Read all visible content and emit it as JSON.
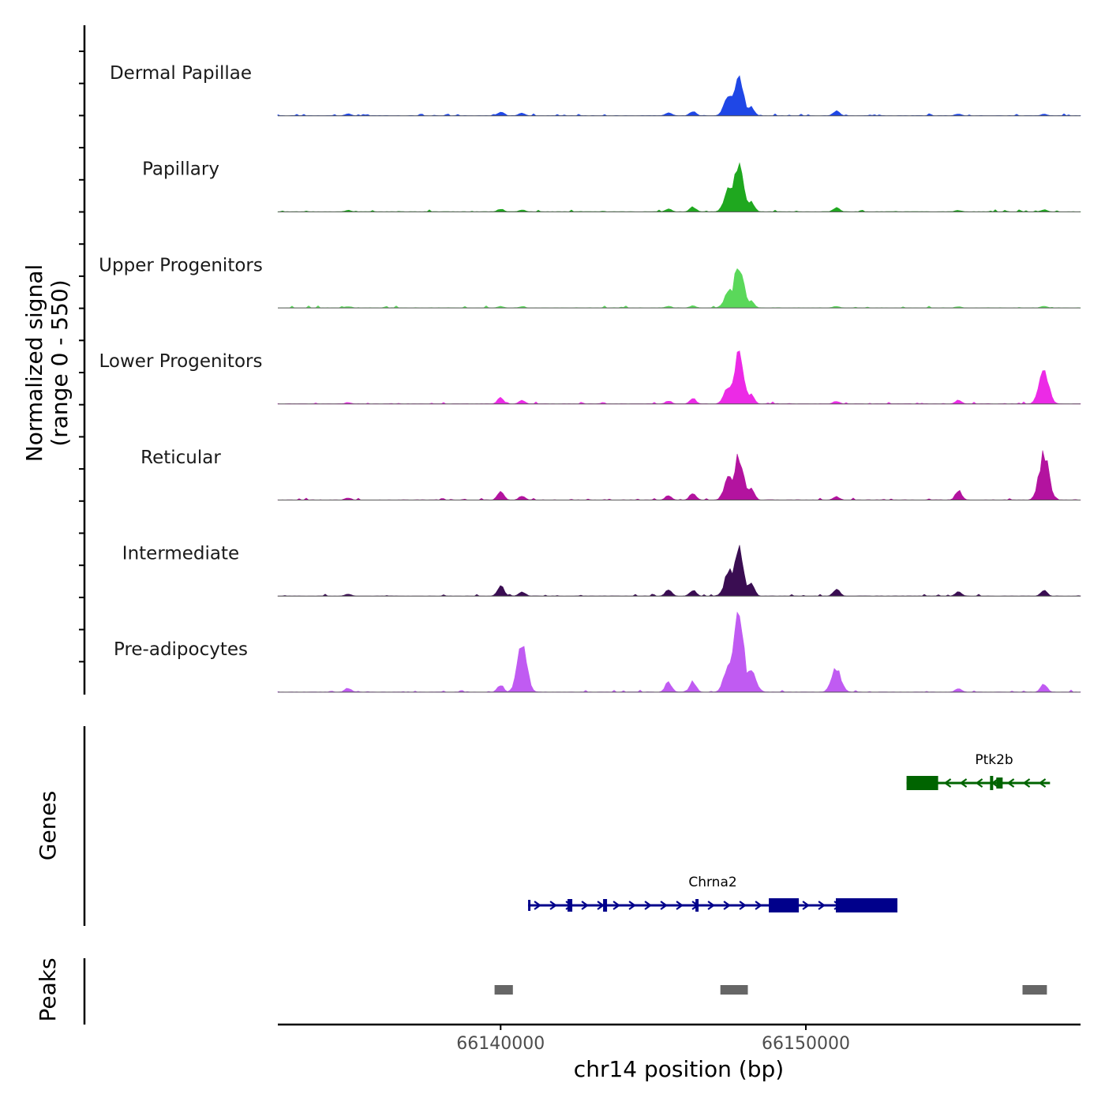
{
  "chart_data": {
    "type": "area",
    "chromosome": "chr14",
    "x_range": [
      66132700,
      66159000
    ],
    "signal": {
      "ylabel_line1": "Normalized signal",
      "ylabel_line2": "(range 0 - 550)",
      "ylim": [
        0,
        550
      ],
      "positions": [
        66135000,
        66140000,
        66140700,
        66145500,
        66146300,
        66147500,
        66147800,
        66148200,
        66151000,
        66155000,
        66157800
      ],
      "tracks": [
        {
          "name": "Dermal Papillae",
          "color": "#1f47e6",
          "values": [
            12,
            25,
            18,
            20,
            28,
            140,
            230,
            60,
            30,
            12,
            10
          ]
        },
        {
          "name": "Papillary",
          "color": "#1fa81f",
          "values": [
            10,
            18,
            12,
            18,
            30,
            150,
            320,
            70,
            28,
            10,
            14
          ]
        },
        {
          "name": "Upper Progenitors",
          "color": "#5ad85a",
          "values": [
            10,
            10,
            8,
            10,
            14,
            110,
            280,
            50,
            10,
            8,
            12
          ]
        },
        {
          "name": "Lower Progenitors",
          "color": "#ec2ae6",
          "values": [
            10,
            40,
            22,
            20,
            35,
            120,
            340,
            70,
            18,
            25,
            210
          ]
        },
        {
          "name": "Reticular",
          "color": "#b3139f",
          "values": [
            14,
            55,
            28,
            30,
            45,
            150,
            280,
            85,
            22,
            60,
            290
          ]
        },
        {
          "name": "Intermediate",
          "color": "#3a0d52",
          "values": [
            14,
            70,
            30,
            40,
            40,
            160,
            320,
            95,
            45,
            28,
            38
          ]
        },
        {
          "name": "Pre-adipocytes",
          "color": "#c05bf2",
          "values": [
            25,
            45,
            300,
            65,
            70,
            210,
            550,
            160,
            150,
            25,
            55
          ]
        }
      ]
    },
    "genes": {
      "ylabel": "Genes",
      "items": [
        {
          "name": "Ptk2b",
          "start": 66153300,
          "end": 66158000,
          "strand": "-",
          "color": "#006400"
        },
        {
          "name": "Chrna2",
          "start": 66140900,
          "end": 66153000,
          "strand": "+",
          "color": "#00008b"
        }
      ]
    },
    "peaks": {
      "ylabel": "Peaks",
      "color": "#666666",
      "items": [
        {
          "start": 66139800,
          "end": 66140400
        },
        {
          "start": 66147200,
          "end": 66148100
        },
        {
          "start": 66157100,
          "end": 66157900
        }
      ]
    },
    "xaxis": {
      "title": "chr14 position (bp)",
      "ticks": [
        66140000,
        66150000
      ],
      "tick_labels": [
        "66140000",
        "66150000"
      ]
    }
  }
}
